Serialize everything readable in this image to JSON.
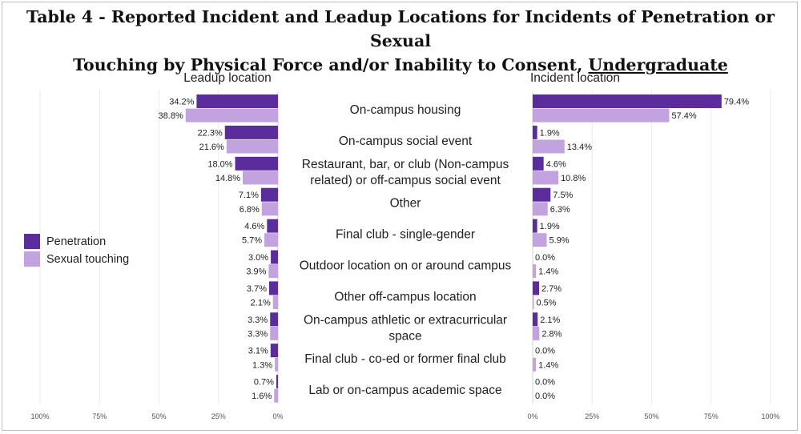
{
  "title": {
    "line1": "Table 4 - Reported Incident and Leadup Locations for Incidents of Penetration or Sexual",
    "line2_prefix": "Touching by Physical Force and/or Inability to Consent, ",
    "line2_underlined": "Undergraduate"
  },
  "colors": {
    "penetration": "#5b2c9c",
    "sexual_touching": "#c2a3e0",
    "grid": "#ececec",
    "text": "#222222"
  },
  "chart_data": {
    "type": "bar",
    "orientation": "horizontal",
    "legend": {
      "position": "left",
      "entries": [
        "Penetration",
        "Sexual touching"
      ]
    },
    "categories": [
      [
        "On-campus housing"
      ],
      [
        "On-campus social event"
      ],
      [
        "Restaurant, bar, or club (Non-campus",
        "related) or off-campus social event"
      ],
      [
        "Other"
      ],
      [
        "Final club - single-gender"
      ],
      [
        "Outdoor location on or around campus"
      ],
      [
        "Other off-campus location"
      ],
      [
        "On-campus athletic or extracurricular",
        "space"
      ],
      [
        "Final club - co-ed or former final club"
      ],
      [
        "Lab or on-campus academic space"
      ]
    ],
    "panels": [
      {
        "title": "Leadup location",
        "direction": "reversed",
        "xlim": [
          0,
          100
        ],
        "ticks": [
          "100%",
          "75%",
          "50%",
          "25%",
          "0%"
        ],
        "series": [
          {
            "name": "Penetration",
            "values": [
              34.2,
              22.3,
              18.0,
              7.1,
              4.6,
              3.0,
              3.7,
              3.3,
              3.1,
              0.7
            ],
            "labels": [
              "34.2%",
              "22.3%",
              "18.0%",
              "7.1%",
              "4.6%",
              "3.0%",
              "3.7%",
              "3.3%",
              "3.1%",
              "0.7%"
            ]
          },
          {
            "name": "Sexual touching",
            "values": [
              38.8,
              21.6,
              14.8,
              6.8,
              5.7,
              3.9,
              2.1,
              3.3,
              1.3,
              1.6
            ],
            "labels": [
              "38.8%",
              "21.6%",
              "14.8%",
              "6.8%",
              "5.7%",
              "3.9%",
              "2.1%",
              "3.3%",
              "1.3%",
              "1.6%"
            ]
          }
        ]
      },
      {
        "title": "Incident location",
        "direction": "normal",
        "xlim": [
          0,
          100
        ],
        "ticks": [
          "0%",
          "25%",
          "50%",
          "75%",
          "100%"
        ],
        "series": [
          {
            "name": "Penetration",
            "values": [
              79.4,
              1.9,
              4.6,
              7.5,
              1.9,
              0.0,
              2.7,
              2.1,
              0.0,
              0.0
            ],
            "labels": [
              "79.4%",
              "1.9%",
              "4.6%",
              "7.5%",
              "1.9%",
              "0.0%",
              "2.7%",
              "2.1%",
              "0.0%",
              "0.0%"
            ]
          },
          {
            "name": "Sexual touching",
            "values": [
              57.4,
              13.4,
              10.8,
              6.3,
              5.9,
              1.4,
              0.5,
              2.8,
              1.4,
              0.0
            ],
            "labels": [
              "57.4%",
              "13.4%",
              "10.8%",
              "6.3%",
              "5.9%",
              "1.4%",
              "0.5%",
              "2.8%",
              "1.4%",
              "0.0%"
            ]
          }
        ]
      }
    ]
  }
}
